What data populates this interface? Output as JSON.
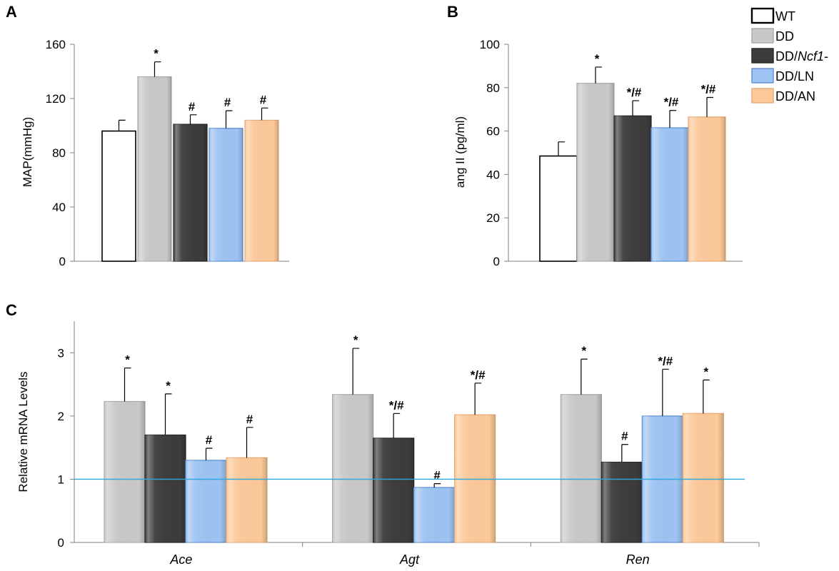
{
  "legend": [
    {
      "key": "WT",
      "label": "WT",
      "italic_suffix": "",
      "suffix": ""
    },
    {
      "key": "DD",
      "label": "DD",
      "italic_suffix": "",
      "suffix": ""
    },
    {
      "key": "DDNcf1",
      "label": "DD/",
      "italic_suffix": "Ncf1",
      "suffix": "-"
    },
    {
      "key": "DDLN",
      "label": "DD/LN",
      "italic_suffix": "",
      "suffix": ""
    },
    {
      "key": "DDAN",
      "label": "DD/AN",
      "italic_suffix": "",
      "suffix": ""
    }
  ],
  "colors": {
    "WT": {
      "fill": "#ffffff",
      "stroke": "#000000"
    },
    "DD": {
      "fill": "#c8c8c8",
      "stroke": "#a8a8a8"
    },
    "DDNcf1": {
      "fill": "#3c3c3c",
      "stroke": "#262626"
    },
    "DDLN": {
      "fill": "#9ec3f2",
      "stroke": "#5b8fd6"
    },
    "DDAN": {
      "fill": "#fbc99a",
      "stroke": "#e8a874"
    },
    "refline": "#29a9e0"
  },
  "chart_data": [
    {
      "panel": "A",
      "type": "bar",
      "ylabel": "MAP(mmHg)",
      "ylim": [
        0,
        160
      ],
      "yticks": [
        0,
        40,
        80,
        120,
        160
      ],
      "categories": [
        "WT",
        "DD",
        "DDNcf1",
        "DDLN",
        "DDAN"
      ],
      "values": [
        96,
        136,
        101,
        98,
        104
      ],
      "errors": [
        8,
        11,
        7,
        13,
        9
      ],
      "annotations": [
        "",
        "*",
        "#",
        "#",
        "#"
      ]
    },
    {
      "panel": "B",
      "type": "bar",
      "ylabel": "ang II (pg/ml)",
      "ylim": [
        0,
        100
      ],
      "yticks": [
        0,
        20,
        40,
        60,
        80,
        100
      ],
      "categories": [
        "WT",
        "DD",
        "DDNcf1",
        "DDLN",
        "DDAN"
      ],
      "values": [
        48.5,
        82,
        67,
        61.5,
        66.5
      ],
      "errors": [
        6.5,
        7.5,
        7,
        8,
        9
      ],
      "annotations": [
        "",
        "*",
        "*/#",
        "*/#",
        "*/#"
      ]
    },
    {
      "panel": "C",
      "type": "bar",
      "ylabel": "Relative mRNA Levels",
      "ylim": [
        0,
        3.5
      ],
      "yticks": [
        0,
        1,
        2,
        3
      ],
      "categories": [
        "Ace",
        "Agt",
        "Ren"
      ],
      "reference_line": 1,
      "series": [
        {
          "key": "DD",
          "values": [
            2.23,
            2.34,
            2.34
          ],
          "errors": [
            0.53,
            0.73,
            0.56
          ],
          "annotations": [
            "*",
            "*",
            "*"
          ]
        },
        {
          "key": "DDNcf1",
          "values": [
            1.7,
            1.65,
            1.27
          ],
          "errors": [
            0.65,
            0.39,
            0.28
          ],
          "annotations": [
            "*",
            "*/#",
            "#"
          ]
        },
        {
          "key": "DDLN",
          "values": [
            1.3,
            0.87,
            2.0
          ],
          "errors": [
            0.19,
            0.06,
            0.74
          ],
          "annotations": [
            "#",
            "#",
            "*/#"
          ]
        },
        {
          "key": "DDAN",
          "values": [
            1.34,
            2.02,
            2.04
          ],
          "errors": [
            0.48,
            0.5,
            0.53
          ],
          "annotations": [
            "#",
            "*/#",
            "*"
          ]
        }
      ]
    }
  ]
}
